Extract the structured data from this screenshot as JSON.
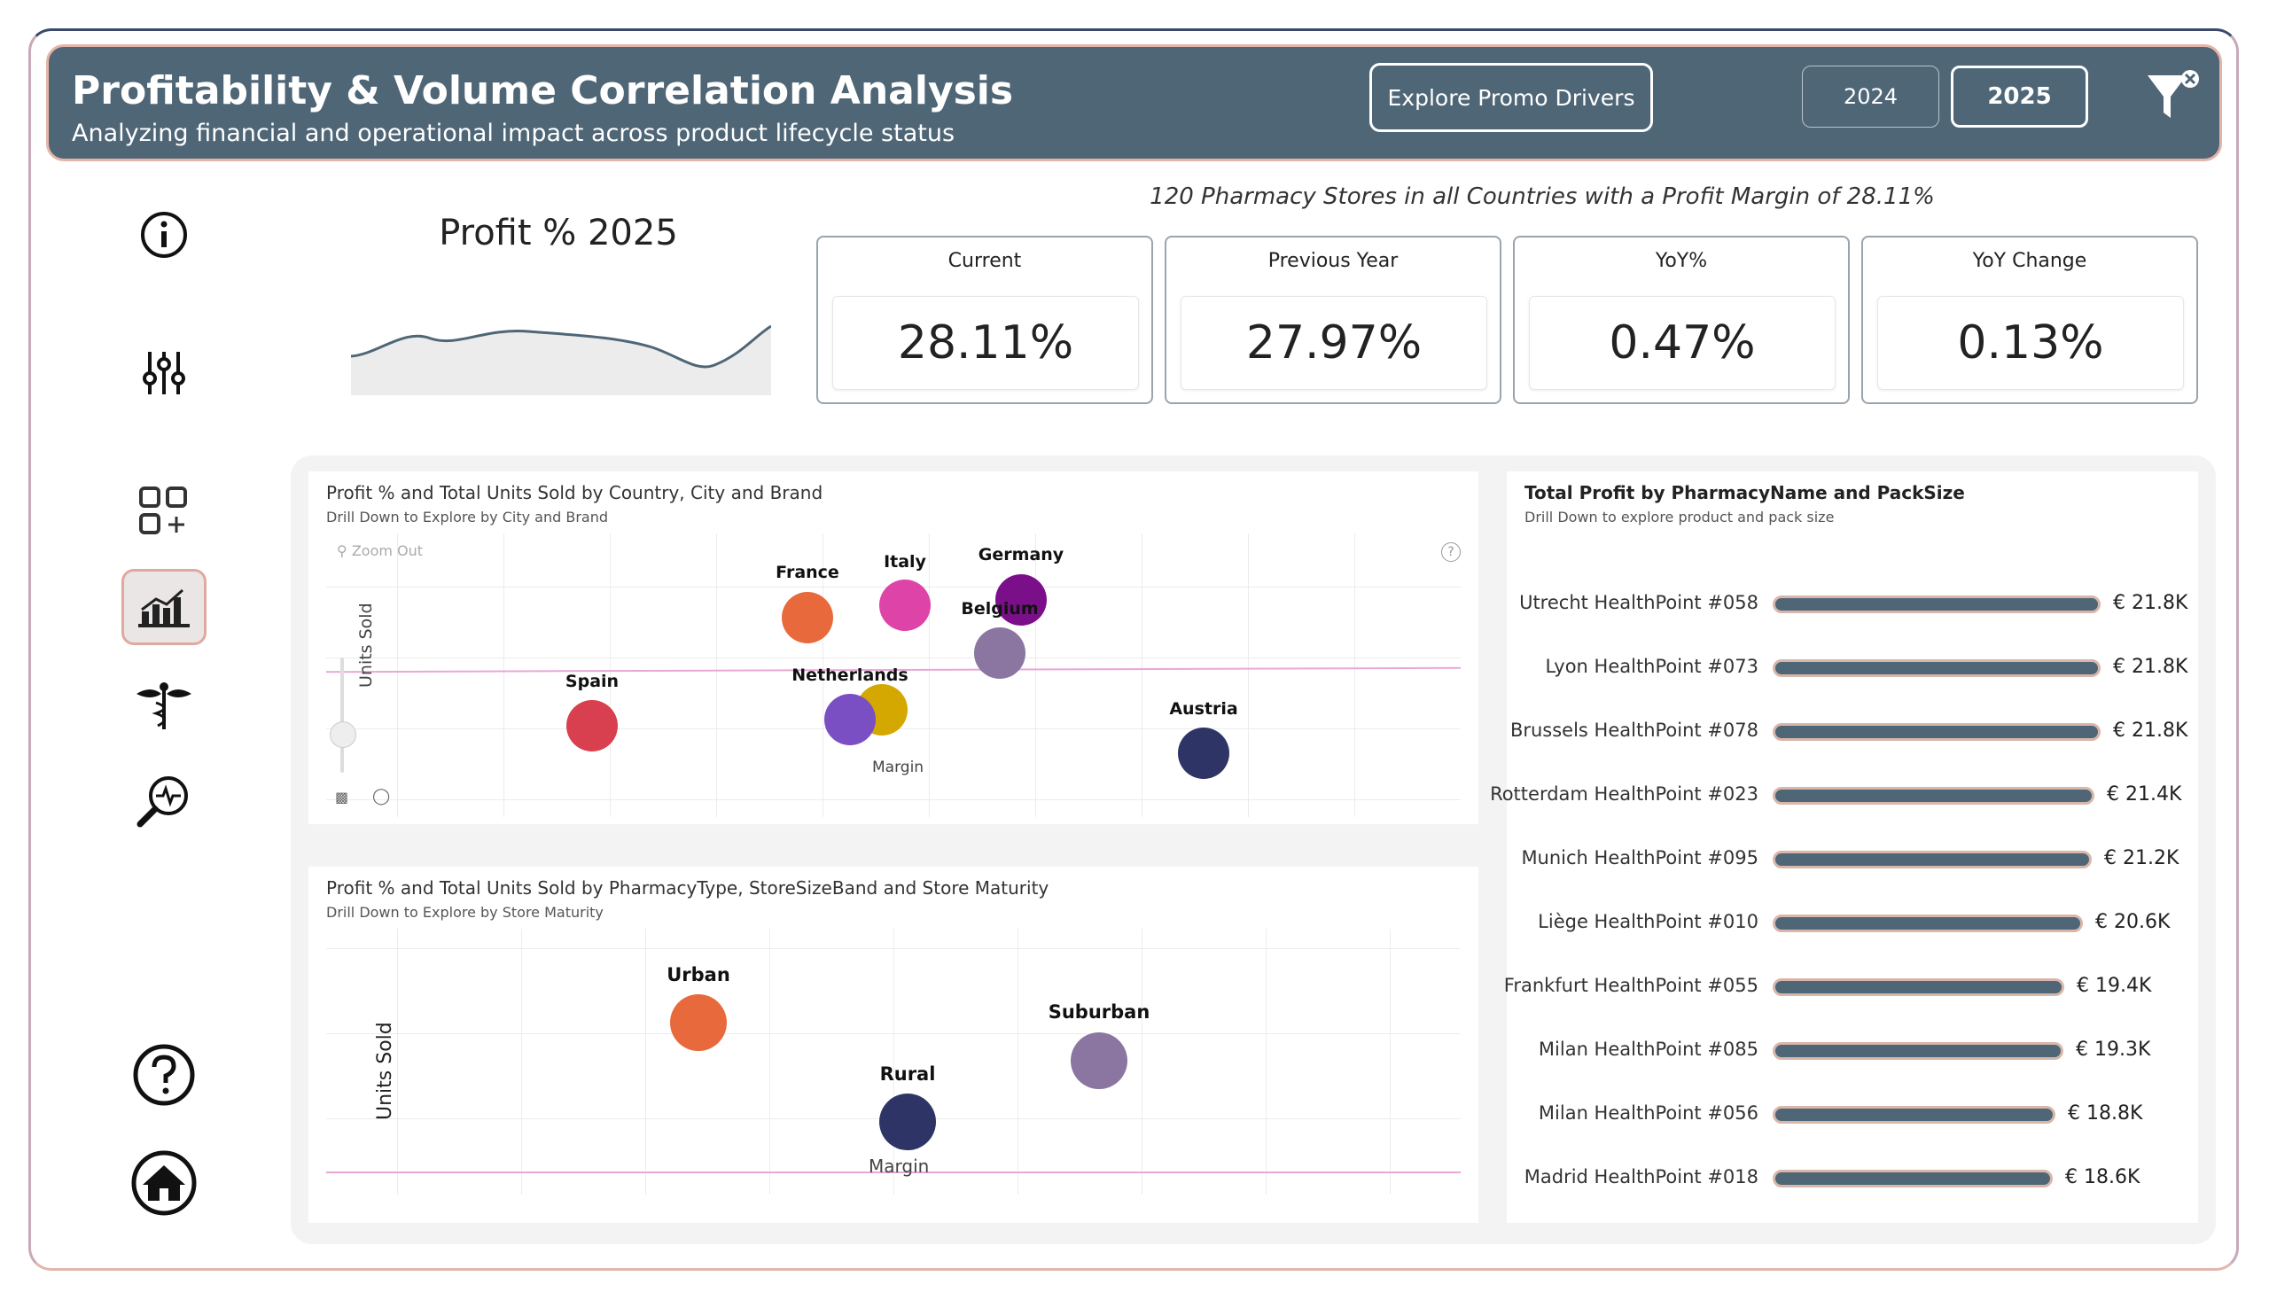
{
  "header": {
    "title": "Profitability & Volume Correlation Analysis",
    "subtitle": "Analyzing financial and operational impact across product lifecycle status",
    "promo_button": "Explore Promo Drivers",
    "years": [
      "2024",
      "2025"
    ],
    "selected_year": "2025"
  },
  "sidebar": {
    "items": [
      "info-icon",
      "sliders-icon",
      "add-apps-icon",
      "bar-chart-icon",
      "caduceus-icon",
      "search-pulse-icon",
      "help-icon",
      "home-icon"
    ],
    "active": "bar-chart-icon"
  },
  "kpi": {
    "title": "Profit %  2025",
    "summary": "120 Pharmacy Stores in all Countries with a Profit Margin of 28.11%",
    "cards": [
      {
        "label": "Current",
        "value": "28.11%"
      },
      {
        "label": "Previous Year",
        "value": "27.97%"
      },
      {
        "label": "YoY%",
        "value": "0.47%"
      },
      {
        "label": "YoY Change",
        "value": "0.13%"
      }
    ]
  },
  "scatter1": {
    "title": "Profit % and Total Units Sold by Country, City and Brand",
    "subtitle": "Drill Down to Explore by City and Brand",
    "zoom_out": "Zoom Out",
    "xlabel": "Margin",
    "ylabel": "Units Sold",
    "points": [
      {
        "label": "Spain",
        "color": "#d9404f"
      },
      {
        "label": "France",
        "color": "#e8693c"
      },
      {
        "label": "Italy",
        "color": "#de44a8"
      },
      {
        "label": "Germany",
        "color": "#7b0f8a"
      },
      {
        "label": "Belgium",
        "color": "#8a76a0"
      },
      {
        "label": "Netherlands",
        "color": "#7a4fc4"
      },
      {
        "label": "Austria",
        "color": "#2e3566"
      }
    ]
  },
  "scatter2": {
    "title": "Profit % and Total Units Sold by PharmacyType, StoreSizeBand and Store Maturity",
    "subtitle": "Drill Down to Explore by Store Maturity",
    "xlabel": "Margin",
    "ylabel": "Units Sold",
    "points": [
      {
        "label": "Urban",
        "color": "#e8693c"
      },
      {
        "label": "Rural",
        "color": "#2e3566"
      },
      {
        "label": "Suburban",
        "color": "#8a76a0"
      }
    ]
  },
  "barchart": {
    "title": "Total Profit by PharmacyName and PackSize",
    "subtitle": "Drill Down to explore product and pack size",
    "rows": [
      {
        "name": "Utrecht HealthPoint #058",
        "value": 21.8,
        "label": "€ 21.8K"
      },
      {
        "name": "Lyon HealthPoint #073",
        "value": 21.8,
        "label": "€ 21.8K"
      },
      {
        "name": "Brussels HealthPoint #078",
        "value": 21.8,
        "label": "€ 21.8K"
      },
      {
        "name": "Rotterdam HealthPoint #023",
        "value": 21.4,
        "label": "€ 21.4K"
      },
      {
        "name": "Munich HealthPoint #095",
        "value": 21.2,
        "label": "€ 21.2K"
      },
      {
        "name": "Liège HealthPoint #010",
        "value": 20.6,
        "label": "€ 20.6K"
      },
      {
        "name": "Frankfurt HealthPoint #055",
        "value": 19.4,
        "label": "€ 19.4K"
      },
      {
        "name": "Milan HealthPoint #085",
        "value": 19.3,
        "label": "€ 19.3K"
      },
      {
        "name": "Milan HealthPoint #056",
        "value": 18.8,
        "label": "€ 18.8K"
      },
      {
        "name": "Madrid HealthPoint #018",
        "value": 18.6,
        "label": "€ 18.6K"
      }
    ]
  }
}
